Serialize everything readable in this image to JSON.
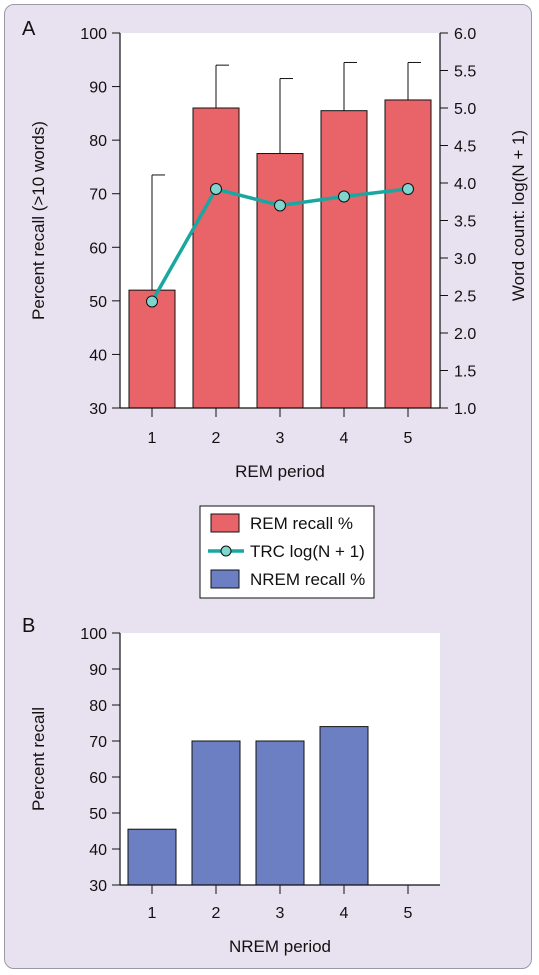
{
  "colors": {
    "rem_bar": "#e86468",
    "nrem_bar": "#6b7fc2",
    "trc_line": "#1aa7a1",
    "trc_marker": "#7fd6cf",
    "panel_bg": "#e8e1ef",
    "plot_bg": "#ffffff"
  },
  "legend": {
    "items": [
      {
        "key": "rem",
        "label": "REM recall %"
      },
      {
        "key": "trc",
        "label": "TRC log(N + 1)"
      },
      {
        "key": "nrem",
        "label": "NREM recall %"
      }
    ]
  },
  "chart_data": [
    {
      "panel_label": "A",
      "type": "bar",
      "xlabel": "REM period",
      "ylabel": "Percent recall (>10 words)",
      "y2label": "Word count: log(N + 1)",
      "categories": [
        "1",
        "2",
        "3",
        "4",
        "5"
      ],
      "ylim": [
        30,
        100
      ],
      "yticks": [
        30,
        40,
        50,
        60,
        70,
        80,
        90,
        100
      ],
      "y2lim": [
        1.0,
        6.0
      ],
      "y2ticks": [
        "1.0",
        "1.5",
        "2.0",
        "2.5",
        "3.0",
        "3.5",
        "4.0",
        "4.5",
        "5.0",
        "5.5",
        "6.0"
      ],
      "series": [
        {
          "name": "REM recall %",
          "kind": "bar",
          "axis": "left",
          "values": [
            52,
            86,
            77.5,
            85.5,
            87.5
          ],
          "error_upper": [
            73.5,
            94,
            91.5,
            94.5,
            94.5
          ]
        },
        {
          "name": "TRC log(N + 1)",
          "kind": "line",
          "axis": "right",
          "values": [
            2.42,
            3.92,
            3.7,
            3.82,
            3.92
          ]
        }
      ]
    },
    {
      "panel_label": "B",
      "type": "bar",
      "xlabel": "NREM period",
      "ylabel": "Percent recall",
      "categories": [
        "1",
        "2",
        "3",
        "4",
        "5"
      ],
      "ylim": [
        30,
        100
      ],
      "yticks": [
        30,
        40,
        50,
        60,
        70,
        80,
        90,
        100
      ],
      "series": [
        {
          "name": "NREM recall %",
          "kind": "bar",
          "axis": "left",
          "values": [
            45.5,
            70,
            70,
            74,
            null
          ]
        }
      ]
    }
  ]
}
